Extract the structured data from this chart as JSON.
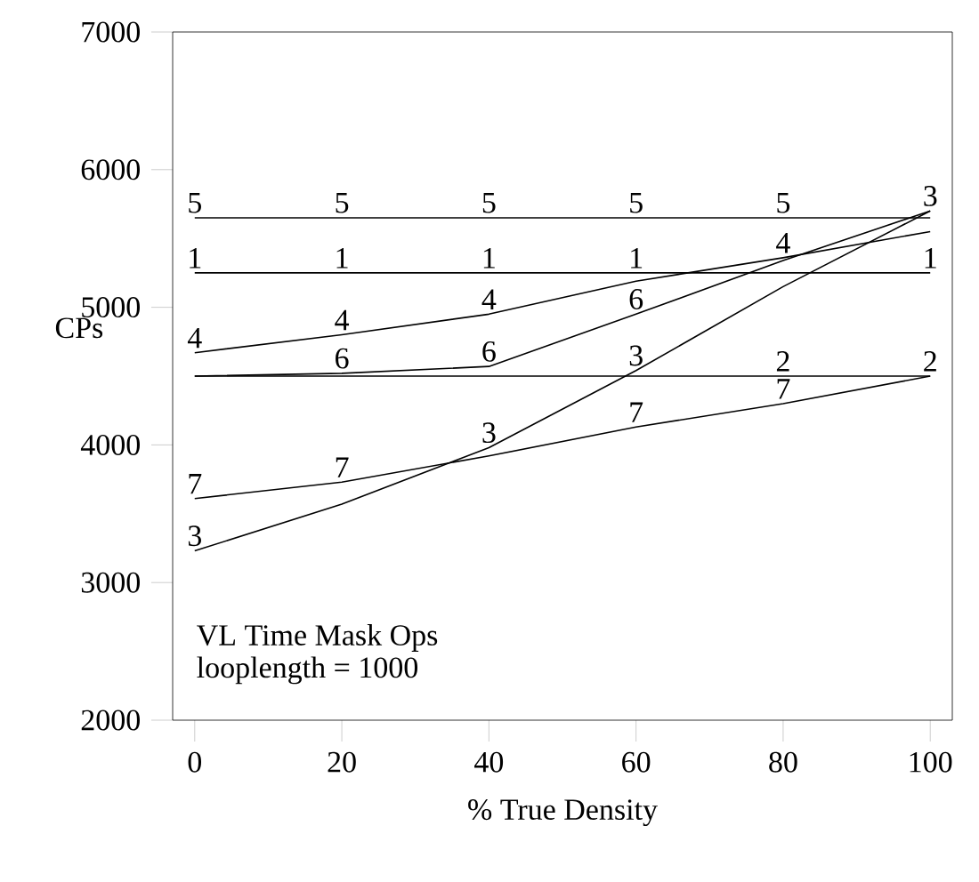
{
  "chart_data": {
    "type": "line",
    "xlabel": "% True Density",
    "ylabel": "CPs",
    "x": [
      0,
      20,
      40,
      60,
      80,
      100
    ],
    "xlim": [
      -3,
      103
    ],
    "ylim": [
      2000,
      7000
    ],
    "xticks": [
      0,
      20,
      40,
      60,
      80,
      100
    ],
    "yticks": [
      2000,
      3000,
      4000,
      5000,
      6000,
      7000
    ],
    "grid": false,
    "legend": false,
    "series": [
      {
        "name": "1",
        "color": "#000000",
        "values": [
          5250,
          5250,
          5250,
          5250,
          5250,
          5250
        ]
      },
      {
        "name": "2",
        "color": "#000000",
        "values": [
          4500,
          4500,
          4500,
          4500,
          4500,
          4500
        ]
      },
      {
        "name": "3",
        "color": "#000000",
        "values": [
          3230,
          3570,
          3980,
          4540,
          5150,
          5700
        ]
      },
      {
        "name": "4",
        "color": "#000000",
        "values": [
          4670,
          4800,
          4950,
          5190,
          5360,
          5550
        ]
      },
      {
        "name": "5",
        "color": "#000000",
        "values": [
          5650,
          5650,
          5650,
          5650,
          5650,
          5650
        ]
      },
      {
        "name": "6",
        "color": "#000000",
        "values": [
          4500,
          4520,
          4570,
          4950,
          5340,
          5700
        ]
      },
      {
        "name": "7",
        "color": "#000000",
        "values": [
          3610,
          3730,
          3920,
          4130,
          4300,
          4500
        ]
      }
    ],
    "annotations": [
      "VL Time Mask Ops",
      "looplength = 1000"
    ]
  }
}
